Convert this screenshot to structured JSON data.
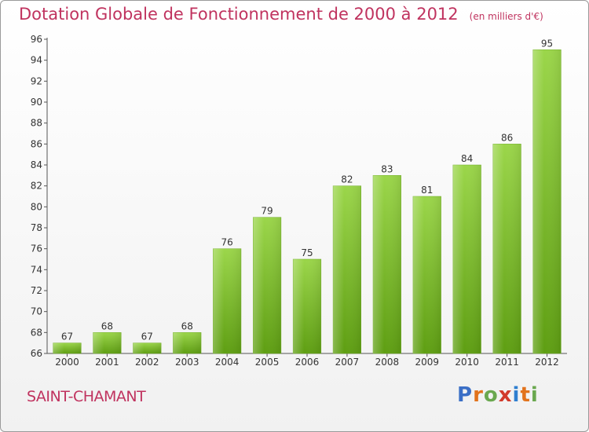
{
  "header": {
    "title": "Dotation Globale de Fonctionnement de 2000 à 2012",
    "unit": "(en milliers d'€)"
  },
  "footer": {
    "commune": "SAINT-CHAMANT",
    "brand_letters": [
      "P",
      "r",
      "o",
      "x",
      "i",
      "t",
      "i"
    ],
    "brand_colors": [
      "#3b6fc6",
      "#e2731c",
      "#6aa84f",
      "#d23a2b",
      "#2f7fd0",
      "#e2731c",
      "#6aa84f"
    ]
  },
  "colors": {
    "bar_top": "#9bd64a",
    "bar_bottom": "#5e9e12",
    "text": "#333333",
    "grid": "#e6e6e6"
  },
  "chart_data": {
    "type": "bar",
    "title": "Dotation Globale de Fonctionnement de 2000 à 2012",
    "xlabel": "",
    "ylabel": "",
    "categories": [
      "2000",
      "2001",
      "2002",
      "2003",
      "2004",
      "2005",
      "2006",
      "2007",
      "2008",
      "2009",
      "2010",
      "2011",
      "2012"
    ],
    "values": [
      67,
      68,
      67,
      68,
      76,
      79,
      75,
      82,
      83,
      81,
      84,
      86,
      95
    ],
    "ylim": [
      66,
      96
    ],
    "yticks": [
      66,
      68,
      70,
      72,
      74,
      76,
      78,
      80,
      82,
      84,
      86,
      88,
      90,
      92,
      94,
      96
    ],
    "grid": false,
    "data_labels": true
  }
}
